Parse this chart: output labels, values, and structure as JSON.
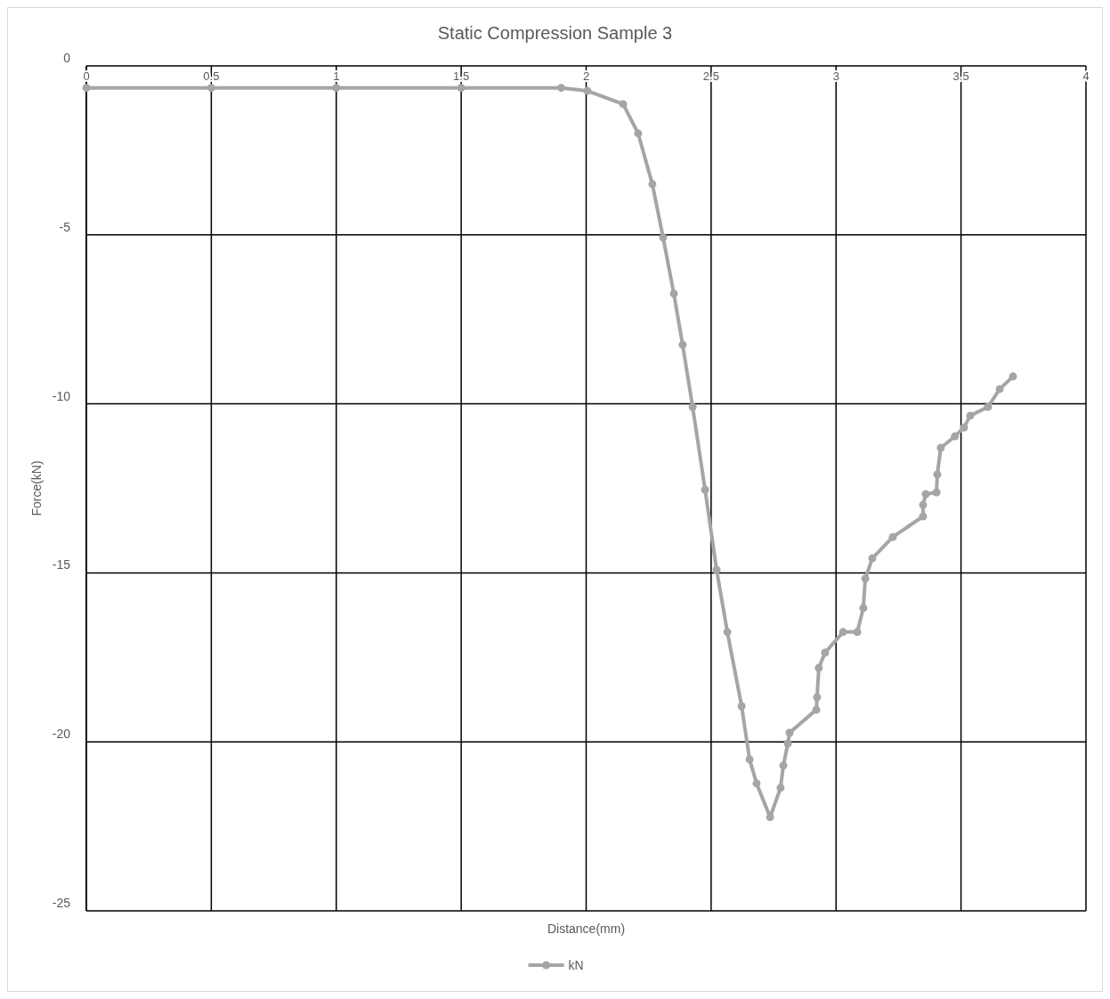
{
  "chart_data": {
    "type": "line",
    "title": "Static Compression Sample 3",
    "xlabel": "Distance(mm)",
    "ylabel": "Force(kN)",
    "x": [
      0,
      0.5,
      1,
      1.5,
      1.9,
      2.005,
      2.148,
      2.208,
      2.265,
      2.308,
      2.351,
      2.386,
      2.426,
      2.476,
      2.522,
      2.565,
      2.622,
      2.654,
      2.682,
      2.736,
      2.778,
      2.789,
      2.807,
      2.814,
      2.921,
      2.924,
      2.931,
      2.956,
      3.028,
      3.085,
      3.109,
      3.117,
      3.145,
      3.227,
      3.348,
      3.348,
      3.359,
      3.402,
      3.405,
      3.419,
      3.476,
      3.512,
      3.537,
      3.608,
      3.655,
      3.708
    ],
    "series": [
      {
        "name": "kN",
        "color": "#a5a5a5",
        "values": [
          -0.65,
          -0.65,
          -0.65,
          -0.65,
          -0.65,
          -0.74,
          -1.13,
          -2.0,
          -3.5,
          -5.08,
          -6.74,
          -8.25,
          -10.09,
          -12.54,
          -14.91,
          -16.75,
          -18.94,
          -20.52,
          -21.23,
          -22.23,
          -21.36,
          -20.7,
          -20.05,
          -19.73,
          -19.05,
          -18.68,
          -17.81,
          -17.36,
          -16.75,
          -16.75,
          -16.04,
          -15.17,
          -14.57,
          -13.94,
          -13.33,
          -12.99,
          -12.67,
          -12.62,
          -12.09,
          -11.3,
          -10.96,
          -10.7,
          -10.35,
          -10.09,
          -9.56,
          -9.19
        ]
      }
    ],
    "xlim": [
      0,
      4
    ],
    "xticks": [
      0,
      0.5,
      1,
      1.5,
      2,
      2.5,
      3,
      3.5,
      4
    ],
    "ylim": [
      -25,
      0
    ],
    "yticks": [
      0,
      -5,
      -10,
      -15,
      -20,
      -25
    ],
    "grid": true,
    "legend": "bottom",
    "marker": "circle",
    "line_style": "solid"
  }
}
